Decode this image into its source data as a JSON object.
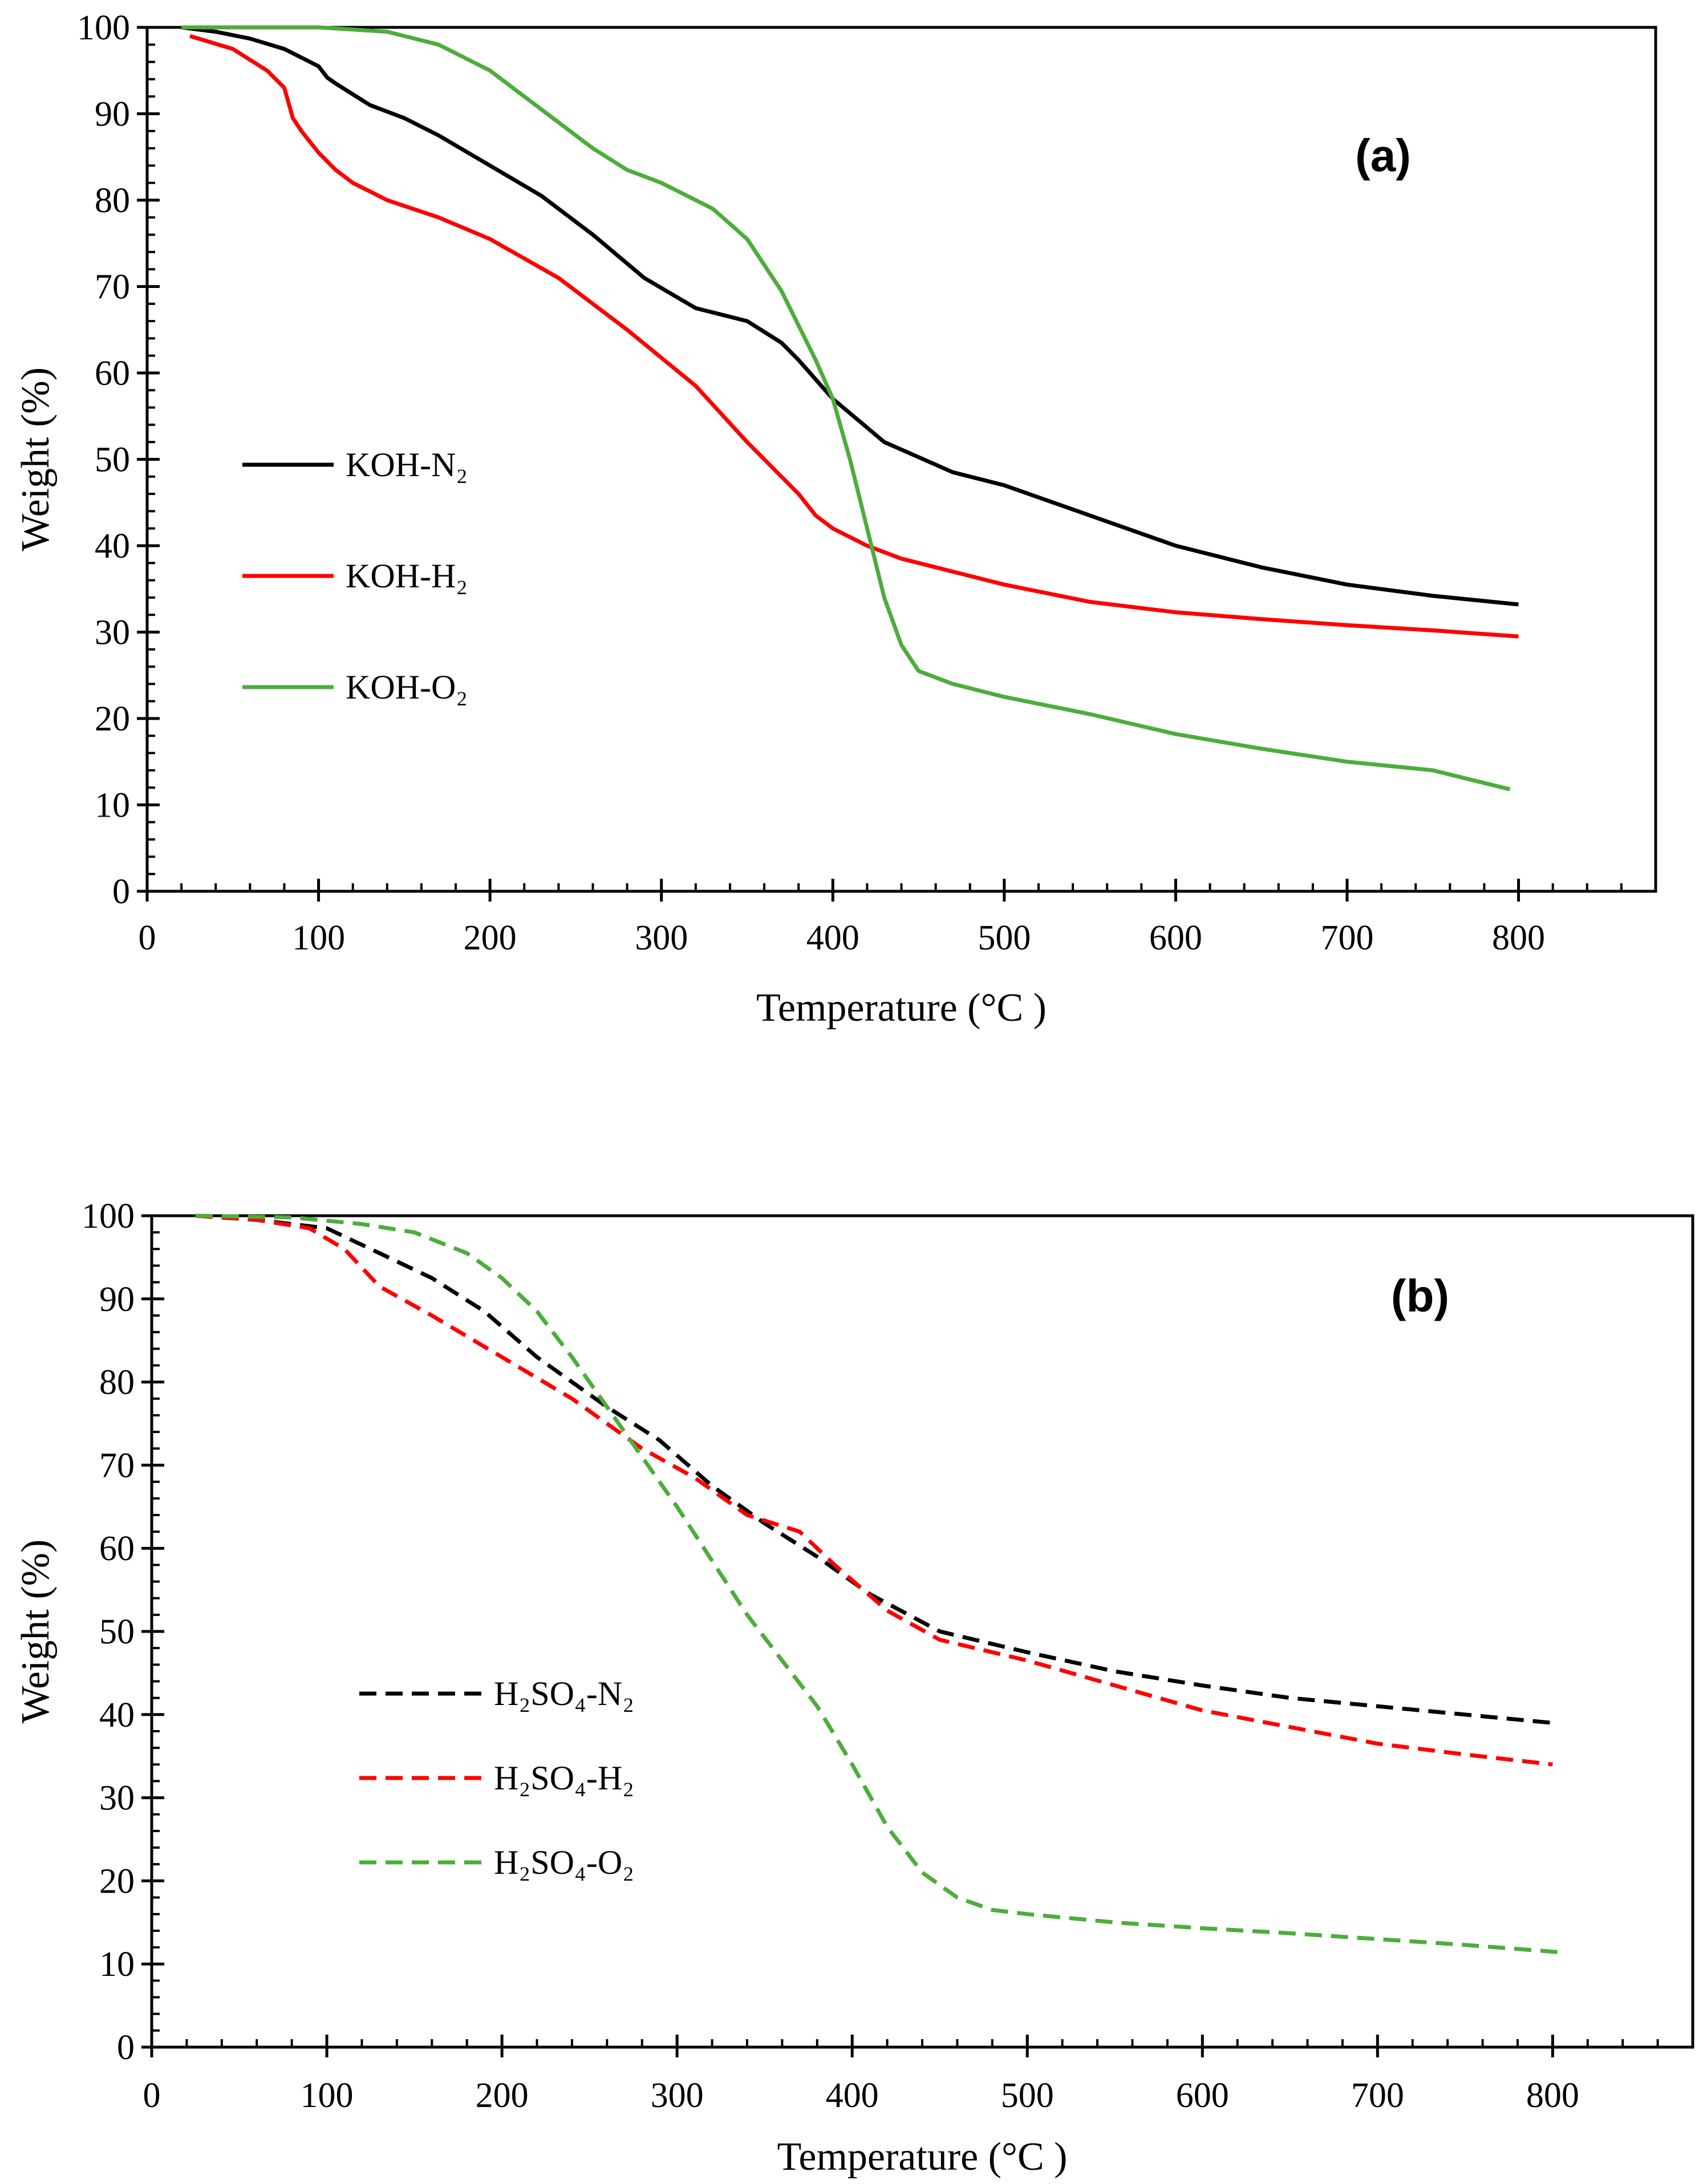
{
  "chart_data": [
    {
      "type": "line",
      "panel_label": "(a)",
      "title": "",
      "xlabel": "Temperature (°C )",
      "ylabel": "Weight (%)",
      "xlim": [
        0,
        880
      ],
      "ylim": [
        0,
        100
      ],
      "xticks": [
        0,
        100,
        200,
        300,
        400,
        500,
        600,
        700,
        800
      ],
      "yticks": [
        0,
        10,
        20,
        30,
        40,
        50,
        60,
        70,
        80,
        90,
        100
      ],
      "grid": false,
      "legend_position": "left-middle",
      "series": [
        {
          "name": "KOH-N₂",
          "color": "#000000",
          "dashed": false,
          "x": [
            20,
            40,
            60,
            80,
            90,
            100,
            105,
            110,
            130,
            150,
            170,
            200,
            230,
            260,
            290,
            320,
            350,
            370,
            380,
            400,
            430,
            470,
            500,
            550,
            600,
            650,
            700,
            750,
            800
          ],
          "y": [
            100,
            99.5,
            98.7,
            97.5,
            96.5,
            95.5,
            94.2,
            93.5,
            91,
            89.5,
            87.5,
            84,
            80.5,
            76,
            71,
            67.5,
            66,
            63.5,
            61.5,
            57,
            52,
            48.5,
            47,
            43.5,
            40,
            37.5,
            35.5,
            34.2,
            33.2
          ]
        },
        {
          "name": "KOH-H₂",
          "color": "#ff0000",
          "dashed": false,
          "x": [
            25,
            50,
            70,
            80,
            85,
            90,
            100,
            110,
            120,
            130,
            140,
            170,
            200,
            240,
            280,
            320,
            350,
            370,
            380,
            390,
            400,
            420,
            440,
            470,
            500,
            550,
            600,
            650,
            700,
            750,
            800
          ],
          "y": [
            99,
            97.5,
            95,
            93,
            89.5,
            88,
            85.5,
            83.5,
            82,
            81,
            80,
            78,
            75.5,
            71,
            65,
            58.5,
            52,
            48,
            46,
            43.5,
            42,
            40,
            38.5,
            37,
            35.5,
            33.5,
            32.3,
            31.5,
            30.8,
            30.2,
            29.5
          ]
        },
        {
          "name": "KOH-O₂",
          "color": "#4cad3b",
          "dashed": false,
          "x": [
            20,
            60,
            100,
            140,
            170,
            200,
            230,
            260,
            280,
            300,
            330,
            350,
            370,
            390,
            400,
            410,
            420,
            430,
            440,
            450,
            470,
            500,
            550,
            600,
            650,
            700,
            750,
            795
          ],
          "y": [
            100,
            100,
            100,
            99.5,
            98,
            95,
            90.5,
            86,
            83.5,
            82,
            79,
            75.5,
            69.5,
            61.5,
            57,
            50,
            42,
            34,
            28.5,
            25.5,
            24,
            22.5,
            20.5,
            18.2,
            16.5,
            15,
            14,
            11.8
          ]
        }
      ]
    },
    {
      "type": "line",
      "panel_label": "(b)",
      "title": "",
      "xlabel": "Temperature (°C )",
      "ylabel": "Weight (%)",
      "xlim": [
        0,
        880
      ],
      "ylim": [
        0,
        100
      ],
      "xticks": [
        0,
        100,
        200,
        300,
        400,
        500,
        600,
        700,
        800
      ],
      "yticks": [
        0,
        10,
        20,
        30,
        40,
        50,
        60,
        70,
        80,
        90,
        100
      ],
      "grid": false,
      "legend_position": "left-bottom",
      "series": [
        {
          "name": "H₂SO₄-N₂",
          "color": "#000000",
          "dashed": true,
          "x": [
            25,
            60,
            100,
            130,
            160,
            190,
            220,
            260,
            290,
            320,
            350,
            380,
            410,
            450,
            500,
            550,
            600,
            650,
            700,
            750,
            800
          ],
          "y": [
            100,
            99.5,
            98.5,
            95.5,
            92.5,
            88.5,
            83,
            77,
            73,
            67.5,
            63,
            59,
            54.5,
            50,
            47.5,
            45.2,
            43.5,
            42,
            41,
            40,
            39
          ]
        },
        {
          "name": "H₂SO₄-H₂",
          "color": "#ff0000",
          "dashed": true,
          "x": [
            25,
            60,
            90,
            110,
            130,
            160,
            200,
            240,
            280,
            310,
            340,
            370,
            390,
            420,
            450,
            500,
            550,
            600,
            650,
            700,
            750,
            800
          ],
          "y": [
            100,
            99.5,
            98.5,
            96,
            91.5,
            88,
            83,
            78,
            72,
            68.5,
            64,
            62,
            58,
            52.5,
            49,
            46.5,
            43.5,
            40.5,
            38.5,
            36.5,
            35.2,
            34
          ]
        },
        {
          "name": "H₂SO₄-O₂",
          "color": "#4cad3b",
          "dashed": true,
          "x": [
            25,
            80,
            120,
            150,
            180,
            200,
            220,
            240,
            260,
            280,
            300,
            320,
            340,
            360,
            380,
            400,
            420,
            440,
            460,
            480,
            500,
            550,
            600,
            650,
            700,
            750,
            805
          ],
          "y": [
            100,
            99.8,
            99,
            98,
            95.5,
            92.5,
            88.5,
            83,
            77,
            71,
            65,
            58.5,
            52,
            46.5,
            41,
            34,
            26.5,
            21,
            18,
            16.5,
            16,
            15,
            14.3,
            13.7,
            13,
            12.3,
            11.4
          ]
        }
      ]
    }
  ]
}
